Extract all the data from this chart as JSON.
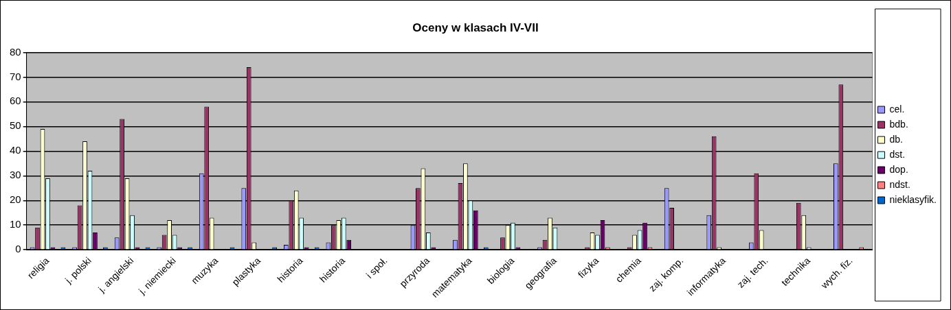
{
  "chart_data": {
    "type": "bar",
    "title": "Oceny w klasach IV-VII",
    "categories": [
      "religia",
      "j. polski",
      "j. angielski",
      "j. niemiecki",
      "muzyka",
      "plastyka",
      "historia",
      "historia",
      "i społ.",
      "przyroda",
      "matematyka",
      "biologia",
      "geografia",
      "fizyka",
      "chemia",
      "zaj. komp.",
      "informatyka",
      "zaj. tech.",
      "technika",
      "wych. fiz."
    ],
    "series": [
      {
        "name": "cel.",
        "color": "#9999ff",
        "values": [
          1,
          1,
          5,
          1,
          31,
          25,
          2,
          3,
          0,
          10,
          4,
          0,
          1,
          0,
          0,
          25,
          14,
          3,
          0,
          35
        ]
      },
      {
        "name": "bdb.",
        "color": "#993366",
        "values": [
          9,
          18,
          53,
          6,
          58,
          74,
          20,
          10,
          0,
          25,
          27,
          5,
          4,
          1,
          1,
          17,
          46,
          31,
          19,
          67
        ]
      },
      {
        "name": "db.",
        "color": "#ffffcc",
        "values": [
          49,
          44,
          29,
          12,
          13,
          3,
          24,
          12,
          0,
          33,
          35,
          10,
          13,
          7,
          6,
          0,
          1,
          8,
          14,
          0
        ]
      },
      {
        "name": "dst.",
        "color": "#ccffff",
        "values": [
          29,
          32,
          14,
          6,
          0,
          0,
          13,
          13,
          0,
          7,
          20,
          11,
          9,
          6,
          8,
          0,
          0,
          0,
          1,
          0
        ]
      },
      {
        "name": "dop.",
        "color": "#660066",
        "values": [
          1,
          7,
          1,
          1,
          0,
          0,
          1,
          4,
          0,
          1,
          16,
          1,
          0,
          12,
          11,
          0,
          0,
          0,
          0,
          0
        ]
      },
      {
        "name": "ndst.",
        "color": "#ff8080",
        "values": [
          0,
          0,
          0,
          0,
          0,
          0,
          0,
          0,
          0,
          0,
          0,
          0,
          0,
          1,
          1,
          0,
          0,
          0,
          0,
          1
        ]
      },
      {
        "name": "nieklasyfik.",
        "color": "#0066cc",
        "values": [
          1,
          1,
          1,
          1,
          1,
          1,
          1,
          0,
          0,
          0,
          1,
          0,
          0,
          0,
          0,
          0,
          0,
          0,
          0,
          0
        ]
      }
    ],
    "ylim": [
      0,
      80
    ],
    "yticks": [
      0,
      10,
      20,
      30,
      40,
      50,
      60,
      70,
      80
    ],
    "grid": "y",
    "legend": "right"
  }
}
